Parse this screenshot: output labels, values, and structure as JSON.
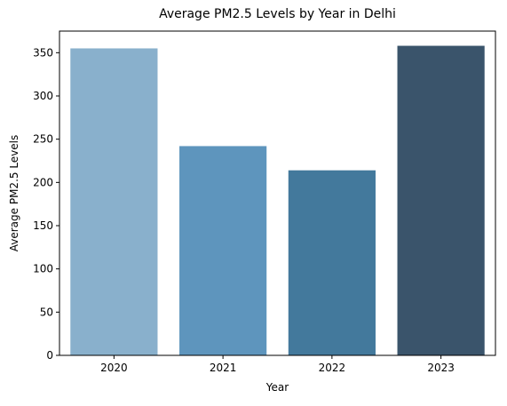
{
  "chart_data": {
    "type": "bar",
    "title": "Average PM2.5 Levels by Year in Delhi",
    "xlabel": "Year",
    "ylabel": "Average PM2.5 Levels",
    "categories": [
      "2020",
      "2021",
      "2022",
      "2023"
    ],
    "values": [
      355,
      242,
      214,
      358
    ],
    "ylim": [
      0,
      375
    ],
    "yticks": [
      0,
      50,
      100,
      150,
      200,
      250,
      300,
      350
    ],
    "colors": [
      "#89b0cc",
      "#5e95bd",
      "#43799c",
      "#3a546b"
    ],
    "grid": false,
    "legend": "none"
  }
}
